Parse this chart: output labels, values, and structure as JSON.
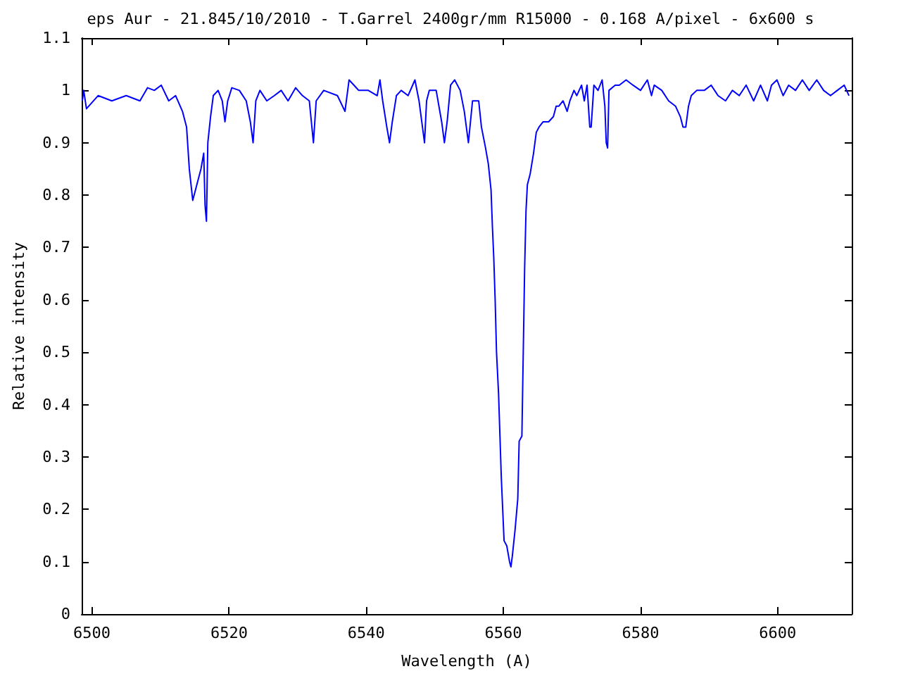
{
  "chart_data": {
    "type": "line",
    "title": "eps Aur - 21.845/10/2010 - T.Garrel 2400gr/mm R15000 - 0.168 A/pixel - 6x600 s",
    "xlabel": "Wavelength (A)",
    "ylabel": "Relative intensity",
    "series": [
      {
        "color": "#0000ff",
        "x": [
          6498.6,
          6498.8,
          6499.2,
          6500.9,
          6502.9,
          6505.0,
          6507.0,
          6508.1,
          6509.1,
          6510.1,
          6511.2,
          6512.2,
          6513.2,
          6513.8,
          6514.2,
          6514.7,
          6515.1,
          6515.5,
          6515.9,
          6516.3,
          6516.5,
          6516.7,
          6516.9,
          6517.3,
          6517.7,
          6518.4,
          6519.0,
          6519.4,
          6519.8,
          6520.4,
          6521.5,
          6522.5,
          6523.1,
          6523.5,
          6523.9,
          6524.5,
          6525.5,
          6526.6,
          6527.6,
          6528.6,
          6529.7,
          6530.7,
          6531.7,
          6532.3,
          6532.7,
          6533.8,
          6535.8,
          6536.9,
          6537.5,
          6538.9,
          6540.3,
          6541.6,
          6542.0,
          6542.4,
          6543.0,
          6543.4,
          6543.8,
          6544.4,
          6545.1,
          6546.1,
          6547.1,
          6547.7,
          6548.1,
          6548.5,
          6548.8,
          6549.2,
          6550.2,
          6551.0,
          6551.4,
          6551.8,
          6552.3,
          6552.9,
          6553.7,
          6554.3,
          6554.9,
          6555.5,
          6556.4,
          6556.8,
          6557.4,
          6557.8,
          6558.2,
          6558.4,
          6558.6,
          6558.8,
          6559.0,
          6559.3,
          6559.5,
          6559.7,
          6559.9,
          6560.1,
          6560.5,
          6560.9,
          6561.1,
          6561.3,
          6561.7,
          6562.1,
          6562.3,
          6562.7,
          6562.9,
          6563.1,
          6563.3,
          6563.5,
          6563.9,
          6564.4,
          6564.8,
          6565.2,
          6565.8,
          6566.6,
          6567.3,
          6567.7,
          6568.1,
          6568.7,
          6569.3,
          6569.7,
          6570.3,
          6570.7,
          6571.4,
          6571.8,
          6572.2,
          6572.6,
          6572.8,
          6573.2,
          6573.8,
          6574.4,
          6574.8,
          6575.0,
          6575.2,
          6575.4,
          6576.3,
          6576.9,
          6577.9,
          6578.9,
          6580.0,
          6581.0,
          6581.6,
          6582.0,
          6583.1,
          6584.1,
          6585.1,
          6585.8,
          6586.2,
          6586.6,
          6587.0,
          6587.4,
          6588.2,
          6589.3,
          6590.3,
          6591.3,
          6592.4,
          6593.4,
          6594.4,
          6595.4,
          6596.5,
          6597.5,
          6598.5,
          6599.1,
          6599.9,
          6600.8,
          6601.6,
          6602.6,
          6603.6,
          6604.6,
          6605.7,
          6606.7,
          6607.7,
          6608.7,
          6609.7,
          6610.4
        ],
        "values": [
          0.98,
          1.0,
          0.965,
          0.99,
          0.98,
          0.99,
          0.98,
          1.005,
          1.0,
          1.01,
          0.98,
          0.99,
          0.96,
          0.93,
          0.85,
          0.79,
          0.81,
          0.83,
          0.85,
          0.88,
          0.78,
          0.75,
          0.9,
          0.95,
          0.99,
          1.0,
          0.98,
          0.94,
          0.98,
          1.005,
          1.0,
          0.98,
          0.94,
          0.9,
          0.98,
          1.0,
          0.98,
          0.99,
          1.0,
          0.98,
          1.005,
          0.99,
          0.98,
          0.9,
          0.98,
          1.0,
          0.99,
          0.96,
          1.02,
          1.0,
          1.0,
          0.99,
          1.02,
          0.98,
          0.93,
          0.9,
          0.94,
          0.99,
          1.0,
          0.99,
          1.02,
          0.98,
          0.94,
          0.9,
          0.98,
          1.0,
          1.0,
          0.94,
          0.9,
          0.94,
          1.01,
          1.02,
          1.0,
          0.96,
          0.9,
          0.98,
          0.98,
          0.93,
          0.89,
          0.86,
          0.81,
          0.74,
          0.68,
          0.6,
          0.5,
          0.42,
          0.34,
          0.26,
          0.2,
          0.14,
          0.13,
          0.1,
          0.09,
          0.11,
          0.16,
          0.22,
          0.33,
          0.34,
          0.5,
          0.66,
          0.77,
          0.82,
          0.84,
          0.88,
          0.92,
          0.93,
          0.94,
          0.94,
          0.95,
          0.97,
          0.97,
          0.98,
          0.96,
          0.98,
          1.0,
          0.99,
          1.01,
          0.98,
          1.01,
          0.93,
          0.93,
          1.01,
          1.0,
          1.02,
          0.97,
          0.9,
          0.89,
          1.0,
          1.01,
          1.01,
          1.02,
          1.01,
          1.0,
          1.02,
          0.99,
          1.01,
          1.0,
          0.98,
          0.97,
          0.95,
          0.93,
          0.93,
          0.97,
          0.99,
          1.0,
          1.0,
          1.01,
          0.99,
          0.98,
          1.0,
          0.99,
          1.01,
          0.98,
          1.01,
          0.98,
          1.01,
          1.02,
          0.99,
          1.01,
          1.0,
          1.02,
          1.0,
          1.02,
          1.0,
          0.99,
          1.0,
          1.01,
          0.99
        ]
      }
    ],
    "xlim": [
      6498.5,
      6610.8
    ],
    "xticks": [
      6500,
      6520,
      6540,
      6560,
      6580,
      6600
    ],
    "ylim": [
      0,
      1.1
    ],
    "yticks": [
      0,
      0.1,
      0.2,
      0.3,
      0.4,
      0.5,
      0.6,
      0.7,
      0.8,
      0.9,
      1,
      1.1
    ],
    "grid": false,
    "marker": "none",
    "line_style": "solid"
  }
}
